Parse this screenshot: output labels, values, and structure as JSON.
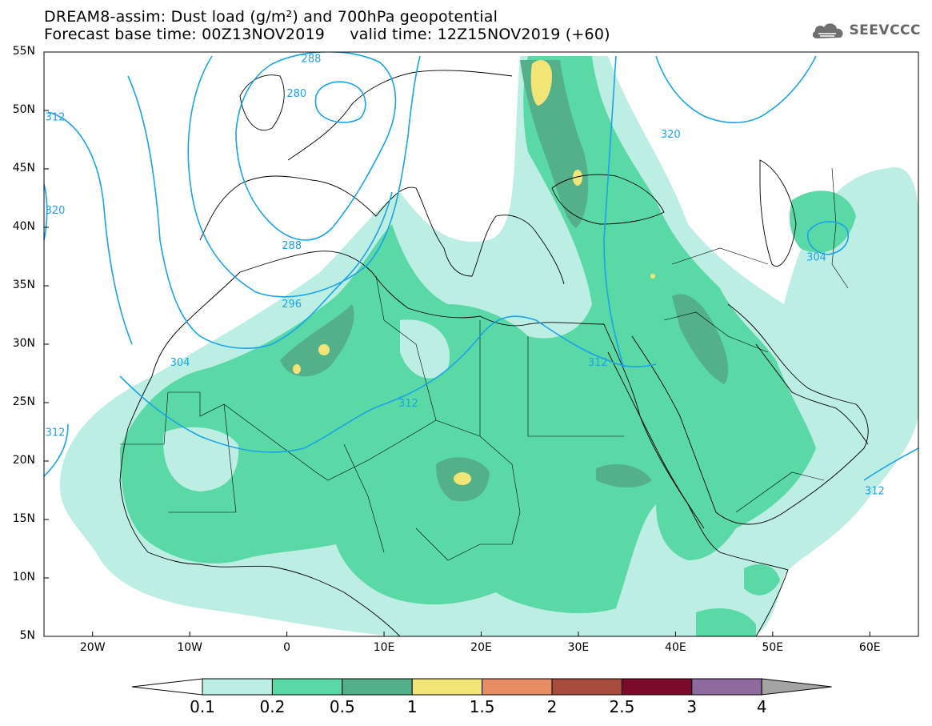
{
  "title": {
    "line1": "DREAM8-assim: Dust load (g/m²) and 700hPa geopotential",
    "line2": "Forecast base time: 00Z13NOV2019     valid time: 12Z15NOV2019 (+60)"
  },
  "logo": {
    "text": "SEEVCCC",
    "icon": "cloud-icon"
  },
  "map": {
    "lat_ticks": [
      "55N",
      "50N",
      "45N",
      "40N",
      "35N",
      "30N",
      "25N",
      "20N",
      "15N",
      "10N",
      "5N"
    ],
    "lon_ticks": [
      "20W",
      "10W",
      "0",
      "10E",
      "20E",
      "30E",
      "40E",
      "50E",
      "60E"
    ],
    "lon_range": [
      -25,
      65
    ],
    "lat_range": [
      5,
      55
    ],
    "contour_labels": [
      {
        "text": "288",
        "lon": 2.5,
        "lat": 54.5
      },
      {
        "text": "280",
        "lon": 1,
        "lat": 51.5
      },
      {
        "text": "312",
        "lon": -24.5,
        "lat": 49.5
      },
      {
        "text": "320",
        "lon": -26,
        "lat": 41.5
      },
      {
        "text": "288",
        "lon": 0.5,
        "lat": 38.5
      },
      {
        "text": "296",
        "lon": 0.5,
        "lat": 33.5
      },
      {
        "text": "304",
        "lon": -11,
        "lat": 28.5
      },
      {
        "text": "312",
        "lon": 12.5,
        "lat": 25
      },
      {
        "text": "312",
        "lon": -24,
        "lat": 22.5
      },
      {
        "text": "312",
        "lon": 32,
        "lat": 28.5
      },
      {
        "text": "320",
        "lon": 39.5,
        "lat": 48
      },
      {
        "text": "304",
        "lon": 54.5,
        "lat": 37.5
      },
      {
        "text": "312",
        "lon": 60.5,
        "lat": 17.5
      }
    ]
  },
  "colorbar": {
    "ticks": [
      "0.1",
      "0.2",
      "0.5",
      "1",
      "1.5",
      "2",
      "2.5",
      "3",
      "4"
    ],
    "colors": [
      "#bdeee3",
      "#5ad8a6",
      "#53b089",
      "#f2e578",
      "#e88c64",
      "#a84d3e",
      "#7d0a2a",
      "#8e6a9e",
      "#a4a4a4"
    ],
    "low_color": "#ffffff"
  }
}
